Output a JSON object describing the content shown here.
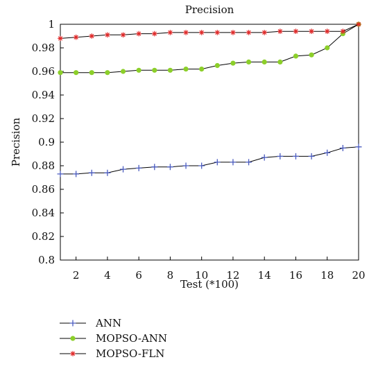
{
  "chart_data": {
    "type": "line",
    "title": "Precision",
    "xlabel": "Test (*100)",
    "ylabel": "Precision",
    "xlim": [
      1,
      20
    ],
    "ylim": [
      0.8,
      1.0
    ],
    "xticks": [
      2,
      4,
      6,
      8,
      10,
      12,
      14,
      16,
      18,
      20
    ],
    "yticks": [
      0.8,
      0.82,
      0.84,
      0.86,
      0.88,
      0.9,
      0.92,
      0.94,
      0.96,
      0.98,
      1
    ],
    "x": [
      1,
      2,
      3,
      4,
      5,
      6,
      7,
      8,
      9,
      10,
      11,
      12,
      13,
      14,
      15,
      16,
      17,
      18,
      19,
      20
    ],
    "grid": false,
    "legend_position": "bottom-left, below plot",
    "series": [
      {
        "name": "ANN",
        "marker": "plus",
        "line_color": "#000000",
        "marker_color": "#4a5bbf",
        "values": [
          0.873,
          0.873,
          0.874,
          0.874,
          0.877,
          0.878,
          0.879,
          0.879,
          0.88,
          0.88,
          0.883,
          0.883,
          0.883,
          0.887,
          0.888,
          0.888,
          0.888,
          0.891,
          0.895,
          0.896
        ]
      },
      {
        "name": "MOPSO-ANN",
        "marker": "circle",
        "line_color": "#000000",
        "marker_color": "#8ccf2a",
        "values": [
          0.959,
          0.959,
          0.959,
          0.959,
          0.96,
          0.961,
          0.961,
          0.961,
          0.962,
          0.962,
          0.965,
          0.967,
          0.968,
          0.968,
          0.968,
          0.973,
          0.974,
          0.98,
          0.992,
          1.0
        ]
      },
      {
        "name": "MOPSO-FLN",
        "marker": "star",
        "line_color": "#000000",
        "marker_color": "#e02a2a",
        "values": [
          0.988,
          0.989,
          0.99,
          0.991,
          0.991,
          0.992,
          0.992,
          0.993,
          0.993,
          0.993,
          0.993,
          0.993,
          0.993,
          0.993,
          0.994,
          0.994,
          0.994,
          0.994,
          0.994,
          1.0
        ]
      }
    ]
  }
}
